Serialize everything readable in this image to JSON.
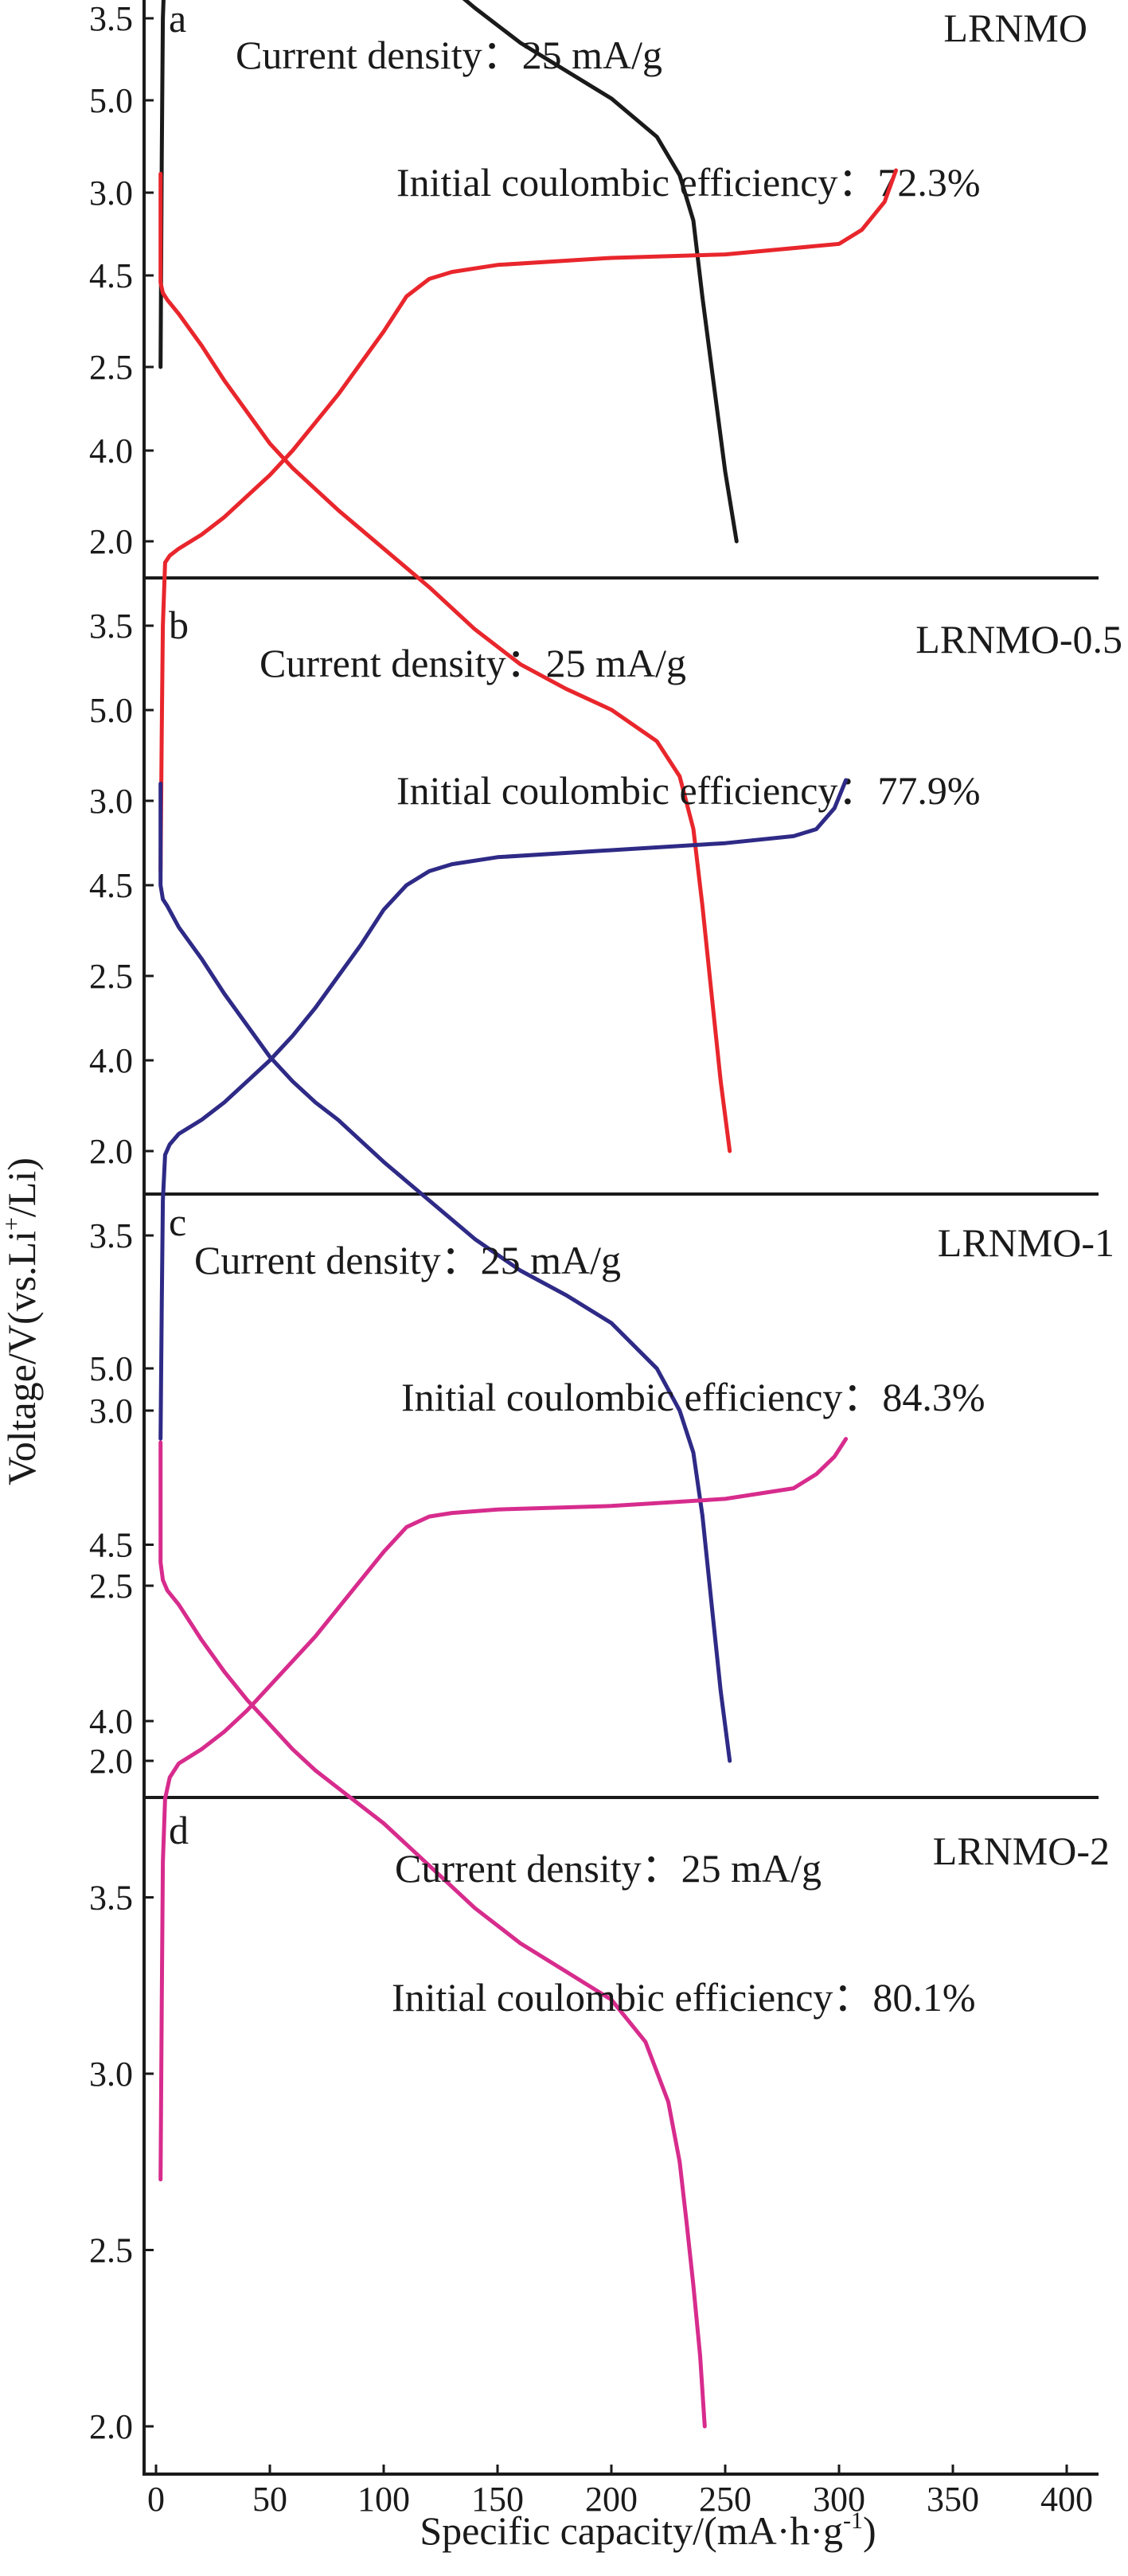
{
  "ylabel_parts": [
    "Voltage/V(vs.Li",
    "+",
    "/Li)"
  ],
  "xlabel_parts": [
    "Specific capacity/(mA·h·g",
    "-1",
    ")"
  ],
  "chart_data": [
    {
      "type": "line",
      "panel": "a",
      "sample": "LRNMO",
      "current_density": "Current density：25 mA/g",
      "efficiency": "Initial coulombic efficiency：72.3%",
      "color": "#1a1a1a",
      "xlim": [
        0,
        400
      ],
      "ylim": [
        1.85,
        5.0
      ],
      "yticks": [
        "2.0",
        "2.5",
        "3.0",
        "3.5",
        "4.0",
        "4.5",
        "5.0"
      ],
      "series": [
        {
          "x": [
            2,
            2.5,
            3,
            4,
            6,
            10,
            20,
            30,
            40,
            50,
            60,
            70,
            80,
            90,
            100,
            110,
            120,
            130,
            150,
            200,
            250,
            300,
            320,
            340,
            352
          ],
          "y": [
            2.5,
            3.1,
            3.5,
            3.68,
            3.7,
            3.72,
            3.76,
            3.8,
            3.85,
            3.91,
            3.98,
            4.05,
            4.13,
            4.22,
            4.32,
            4.42,
            4.48,
            4.5,
            4.52,
            4.53,
            4.54,
            4.56,
            4.58,
            4.66,
            4.8
          ]
        },
        {
          "x": [
            2,
            2,
            3,
            5,
            10,
            20,
            30,
            40,
            50,
            60,
            70,
            80,
            100,
            120,
            140,
            160,
            180,
            200,
            220,
            230,
            236,
            240,
            245,
            250,
            255
          ],
          "y": [
            4.79,
            4.52,
            4.47,
            4.45,
            4.4,
            4.3,
            4.2,
            4.11,
            4.03,
            3.96,
            3.9,
            3.84,
            3.74,
            3.64,
            3.53,
            3.43,
            3.35,
            3.27,
            3.16,
            3.05,
            2.92,
            2.7,
            2.45,
            2.2,
            2.0
          ]
        }
      ]
    },
    {
      "type": "line",
      "panel": "b",
      "sample": "LRNMO-0.5",
      "current_density": "Current density：25 mA/g",
      "efficiency": "Initial coulombic efficiency：77.9%",
      "color": "#e8262c",
      "xlim": [
        0,
        400
      ],
      "ylim": [
        1.85,
        5.25
      ],
      "yticks": [
        "2.0",
        "2.5",
        "3.0",
        "3.5",
        "4.0",
        "4.5",
        "5.0"
      ],
      "series": [
        {
          "x": [
            2,
            2.5,
            3,
            4,
            6,
            10,
            20,
            30,
            40,
            50,
            60,
            70,
            80,
            90,
            100,
            110,
            120,
            130,
            150,
            200,
            250,
            300,
            310,
            320,
            325
          ],
          "y": [
            2.8,
            3.2,
            3.5,
            3.68,
            3.7,
            3.72,
            3.76,
            3.81,
            3.87,
            3.93,
            4.0,
            4.08,
            4.16,
            4.25,
            4.34,
            4.44,
            4.49,
            4.51,
            4.53,
            4.55,
            4.56,
            4.59,
            4.63,
            4.71,
            4.8
          ]
        },
        {
          "x": [
            2,
            2,
            3,
            5,
            10,
            20,
            30,
            40,
            50,
            60,
            70,
            80,
            100,
            120,
            140,
            160,
            180,
            200,
            220,
            230,
            236,
            240,
            244,
            248,
            252
          ],
          "y": [
            4.79,
            4.48,
            4.45,
            4.43,
            4.39,
            4.3,
            4.2,
            4.11,
            4.02,
            3.95,
            3.89,
            3.83,
            3.72,
            3.61,
            3.49,
            3.39,
            3.32,
            3.26,
            3.17,
            3.07,
            2.92,
            2.7,
            2.45,
            2.2,
            2.0
          ]
        }
      ]
    },
    {
      "type": "line",
      "panel": "c",
      "sample": "LRNMO-1",
      "current_density": "Current density：25 mA/g",
      "efficiency": "Initial coulombic efficiency：84.3%",
      "color": "#2e2a86",
      "xlim": [
        0,
        400
      ],
      "ylim": [
        1.85,
        5.25
      ],
      "yticks": [
        "2.0",
        "2.5",
        "3.0",
        "3.5",
        "4.0",
        "4.5",
        "5.0"
      ],
      "series": [
        {
          "x": [
            2,
            2.5,
            3,
            4,
            6,
            10,
            20,
            30,
            40,
            50,
            60,
            70,
            80,
            90,
            100,
            110,
            120,
            130,
            150,
            200,
            250,
            280,
            290,
            298,
            303
          ],
          "y": [
            2.92,
            3.3,
            3.6,
            3.73,
            3.76,
            3.79,
            3.83,
            3.88,
            3.94,
            4.0,
            4.07,
            4.15,
            4.24,
            4.33,
            4.43,
            4.5,
            4.54,
            4.56,
            4.58,
            4.6,
            4.62,
            4.64,
            4.66,
            4.72,
            4.8
          ]
        },
        {
          "x": [
            2,
            2,
            3,
            5,
            10,
            20,
            30,
            40,
            50,
            60,
            70,
            80,
            100,
            120,
            140,
            160,
            180,
            200,
            220,
            230,
            236,
            240,
            244,
            248,
            252
          ],
          "y": [
            4.79,
            4.5,
            4.46,
            4.44,
            4.38,
            4.29,
            4.19,
            4.1,
            4.01,
            3.94,
            3.88,
            3.83,
            3.71,
            3.6,
            3.49,
            3.4,
            3.33,
            3.25,
            3.12,
            3.0,
            2.88,
            2.7,
            2.45,
            2.2,
            2.0
          ]
        }
      ]
    },
    {
      "type": "line",
      "panel": "d",
      "sample": "LRNMO-2",
      "current_density": "Current density：25 mA/g",
      "efficiency": "Initial coulombic efficiency：80.1%",
      "color": "#d72c8d",
      "xlim": [
        -5,
        400
      ],
      "ylim": [
        1.85,
        5.25
      ],
      "yticks": [
        "2.0",
        "2.5",
        "3.0",
        "3.5",
        "4.0",
        "4.5",
        "5.0"
      ],
      "xticks": [
        "0",
        "50",
        "100",
        "150",
        "200",
        "250",
        "300",
        "350",
        "400"
      ],
      "series": [
        {
          "x": [
            2,
            2.5,
            3,
            4,
            6,
            10,
            20,
            30,
            40,
            50,
            60,
            70,
            80,
            90,
            100,
            110,
            120,
            130,
            150,
            200,
            250,
            280,
            290,
            298,
            303
          ],
          "y": [
            2.7,
            3.2,
            3.6,
            3.78,
            3.84,
            3.88,
            3.92,
            3.97,
            4.03,
            4.1,
            4.17,
            4.24,
            4.32,
            4.4,
            4.48,
            4.55,
            4.58,
            4.59,
            4.6,
            4.61,
            4.63,
            4.66,
            4.7,
            4.75,
            4.8
          ]
        },
        {
          "x": [
            2,
            2,
            3,
            5,
            10,
            20,
            30,
            40,
            50,
            60,
            70,
            80,
            100,
            120,
            140,
            160,
            180,
            200,
            215,
            225,
            230,
            233,
            236,
            239,
            241
          ],
          "y": [
            4.79,
            4.45,
            4.4,
            4.37,
            4.33,
            4.23,
            4.14,
            4.06,
            3.99,
            3.92,
            3.86,
            3.81,
            3.71,
            3.59,
            3.47,
            3.37,
            3.29,
            3.21,
            3.09,
            2.92,
            2.75,
            2.58,
            2.4,
            2.2,
            2.0
          ]
        }
      ]
    }
  ]
}
